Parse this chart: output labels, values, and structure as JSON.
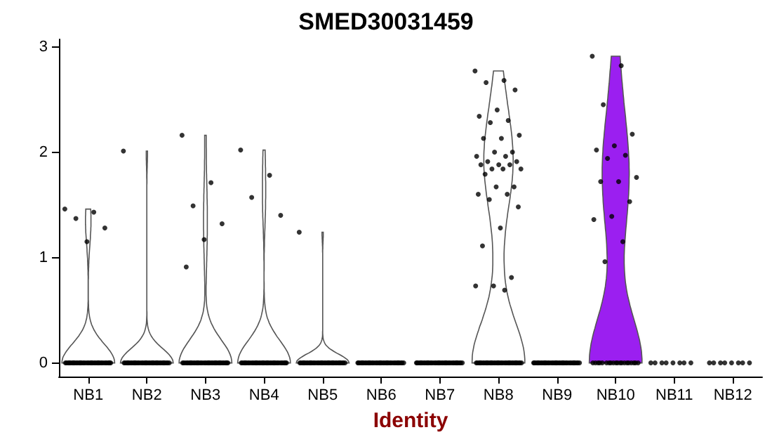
{
  "chart_data": {
    "type": "scatter",
    "title": "SMED30031459",
    "xlabel": "Identity",
    "categories": [
      "NB1",
      "NB2",
      "NB3",
      "NB4",
      "NB5",
      "NB6",
      "NB7",
      "NB8",
      "NB9",
      "NB10",
      "NB11",
      "NB12"
    ],
    "colors": [
      null,
      null,
      null,
      null,
      null,
      null,
      null,
      null,
      null,
      "#9b1ff0",
      null,
      null
    ],
    "ylim": [
      -0.13,
      3.07
    ],
    "yticks": [
      0,
      1,
      2,
      3
    ],
    "grid": false,
    "marker": "circle",
    "series": [
      {
        "color": "#000000",
        "x": [
          "NB1",
          "NB1",
          "NB1",
          "NB1",
          "NB1",
          "NB1",
          "NB1",
          "NB1",
          "NB1",
          "NB1",
          "NB1",
          "NB1",
          "NB1",
          "NB1",
          "NB1",
          "NB1",
          "NB1",
          "NB1",
          "NB1",
          "NB1",
          "NB1",
          "NB1",
          "NB1",
          "NB1",
          "NB1",
          "NB1",
          "NB1",
          "NB1",
          "NB1",
          "NB1",
          "NB1",
          "NB1",
          "NB1",
          "NB1",
          "NB1",
          "NB1",
          "NB1",
          "NB1",
          "NB1",
          "NB1",
          "NB1",
          "NB1",
          "NB1",
          "NB1",
          "NB1",
          "NB2",
          "NB2",
          "NB2",
          "NB2",
          "NB2",
          "NB2",
          "NB2",
          "NB2",
          "NB2",
          "NB2",
          "NB2",
          "NB2",
          "NB2",
          "NB2",
          "NB2",
          "NB2",
          "NB2",
          "NB2",
          "NB2",
          "NB2",
          "NB2",
          "NB2",
          "NB2",
          "NB2",
          "NB2",
          "NB2",
          "NB2",
          "NB2",
          "NB2",
          "NB2",
          "NB2",
          "NB2",
          "NB2",
          "NB2",
          "NB2",
          "NB2",
          "NB2",
          "NB2",
          "NB2",
          "NB2",
          "NB2",
          "NB3",
          "NB3",
          "NB3",
          "NB3",
          "NB3",
          "NB3",
          "NB3",
          "NB3",
          "NB3",
          "NB3",
          "NB3",
          "NB3",
          "NB3",
          "NB3",
          "NB3",
          "NB3",
          "NB3",
          "NB3",
          "NB3",
          "NB3",
          "NB3",
          "NB3",
          "NB3",
          "NB3",
          "NB3",
          "NB3",
          "NB3",
          "NB3",
          "NB3",
          "NB3",
          "NB3",
          "NB3",
          "NB3",
          "NB3",
          "NB3",
          "NB3",
          "NB3",
          "NB3",
          "NB3",
          "NB3",
          "NB3",
          "NB3",
          "NB3",
          "NB3",
          "NB3",
          "NB3",
          "NB4",
          "NB4",
          "NB4",
          "NB4",
          "NB4",
          "NB4",
          "NB4",
          "NB4",
          "NB4",
          "NB4",
          "NB4",
          "NB4",
          "NB4",
          "NB4",
          "NB4",
          "NB4",
          "NB4",
          "NB4",
          "NB4",
          "NB4",
          "NB4",
          "NB4",
          "NB4",
          "NB4",
          "NB4",
          "NB4",
          "NB4",
          "NB4",
          "NB4",
          "NB4",
          "NB4",
          "NB4",
          "NB4",
          "NB4",
          "NB4",
          "NB4",
          "NB4",
          "NB4",
          "NB4",
          "NB4",
          "NB4",
          "NB4",
          "NB4",
          "NB4",
          "NB5",
          "NB5",
          "NB5",
          "NB5",
          "NB5",
          "NB5",
          "NB5",
          "NB5",
          "NB5",
          "NB5",
          "NB5",
          "NB5",
          "NB5",
          "NB5",
          "NB5",
          "NB5",
          "NB5",
          "NB5",
          "NB5",
          "NB5",
          "NB5",
          "NB5",
          "NB5",
          "NB5",
          "NB5",
          "NB5",
          "NB5",
          "NB5",
          "NB5",
          "NB5",
          "NB5",
          "NB5",
          "NB5",
          "NB5",
          "NB5",
          "NB5",
          "NB5",
          "NB5",
          "NB5",
          "NB5",
          "NB5",
          "NB6",
          "NB6",
          "NB6",
          "NB6",
          "NB6",
          "NB6",
          "NB6",
          "NB6",
          "NB6",
          "NB6",
          "NB6",
          "NB6",
          "NB6",
          "NB6",
          "NB6",
          "NB6",
          "NB6",
          "NB6",
          "NB6",
          "NB6",
          "NB6",
          "NB6",
          "NB6",
          "NB6",
          "NB6",
          "NB6",
          "NB6",
          "NB6",
          "NB6",
          "NB6",
          "NB6",
          "NB6",
          "NB6",
          "NB6",
          "NB6",
          "NB6",
          "NB6",
          "NB6",
          "NB6",
          "NB6",
          "NB7",
          "NB7",
          "NB7",
          "NB7",
          "NB7",
          "NB7",
          "NB7",
          "NB7",
          "NB7",
          "NB7",
          "NB7",
          "NB7",
          "NB7",
          "NB7",
          "NB7",
          "NB7",
          "NB7",
          "NB7",
          "NB7",
          "NB7",
          "NB7",
          "NB7",
          "NB7",
          "NB7",
          "NB7",
          "NB7",
          "NB7",
          "NB7",
          "NB7",
          "NB7",
          "NB7",
          "NB7",
          "NB7",
          "NB7",
          "NB7",
          "NB7",
          "NB7",
          "NB7",
          "NB7",
          "NB7",
          "NB8",
          "NB8",
          "NB8",
          "NB8",
          "NB8",
          "NB8",
          "NB8",
          "NB8",
          "NB8",
          "NB8",
          "NB8",
          "NB8",
          "NB8",
          "NB8",
          "NB8",
          "NB8",
          "NB8",
          "NB8",
          "NB8",
          "NB8",
          "NB8",
          "NB8",
          "NB8",
          "NB8",
          "NB8",
          "NB8",
          "NB8",
          "NB8",
          "NB8",
          "NB8",
          "NB8",
          "NB8",
          "NB8",
          "NB8",
          "NB8",
          "NB8",
          "NB8",
          "NB8",
          "NB8",
          "NB8",
          "NB8",
          "NB8",
          "NB8",
          "NB8",
          "NB8",
          "NB8",
          "NB8",
          "NB8",
          "NB8",
          "NB8",
          "NB8",
          "NB8",
          "NB8",
          "NB8",
          "NB8",
          "NB8",
          "NB8",
          "NB8",
          "NB8",
          "NB8",
          "NB8",
          "NB8",
          "NB8",
          "NB8",
          "NB8",
          "NB8",
          "NB8",
          "NB8",
          "NB8",
          "NB8",
          "NB8",
          "NB8",
          "NB8",
          "NB8",
          "NB8",
          "NB8",
          "NB9",
          "NB9",
          "NB9",
          "NB9",
          "NB9",
          "NB9",
          "NB9",
          "NB9",
          "NB9",
          "NB9",
          "NB9",
          "NB9",
          "NB9",
          "NB9",
          "NB9",
          "NB9",
          "NB9",
          "NB9",
          "NB9",
          "NB9",
          "NB9",
          "NB9",
          "NB9",
          "NB9",
          "NB9",
          "NB9",
          "NB9",
          "NB9",
          "NB9",
          "NB9",
          "NB9",
          "NB9",
          "NB9",
          "NB9",
          "NB9",
          "NB9",
          "NB9",
          "NB9",
          "NB9",
          "NB9",
          "NB10",
          "NB10",
          "NB10",
          "NB10",
          "NB10",
          "NB10",
          "NB10",
          "NB10",
          "NB10",
          "NB10",
          "NB10",
          "NB10",
          "NB10",
          "NB10",
          "NB10",
          "NB10",
          "NB10",
          "NB10",
          "NB10",
          "NB10",
          "NB10",
          "NB10",
          "NB10",
          "NB10",
          "NB10",
          "NB10",
          "NB10",
          "NB10",
          "NB10",
          "NB10",
          "NB10",
          "NB10",
          "NB10",
          "NB10",
          "NB10",
          "NB10",
          "NB11",
          "NB11",
          "NB11",
          "NB11",
          "NB11",
          "NB11",
          "NB11",
          "NB11",
          "NB12",
          "NB12",
          "NB12",
          "NB12",
          "NB12",
          "NB12",
          "NB12",
          "NB12"
        ],
        "values": [
          1.46,
          1.43,
          1.37,
          1.28,
          1.15,
          0,
          0,
          0,
          0,
          0,
          0,
          0,
          0,
          0,
          0,
          0,
          0,
          0,
          0,
          0,
          0,
          0,
          0,
          0,
          0,
          0,
          0,
          0,
          0,
          0,
          0,
          0,
          0,
          0,
          0,
          0,
          0,
          0,
          0,
          0,
          0,
          0,
          0,
          0,
          0,
          2.01,
          0,
          0,
          0,
          0,
          0,
          0,
          0,
          0,
          0,
          0,
          0,
          0,
          0,
          0,
          0,
          0,
          0,
          0,
          0,
          0,
          0,
          0,
          0,
          0,
          0,
          0,
          0,
          0,
          0,
          0,
          0,
          0,
          0,
          0,
          0,
          0,
          0,
          0,
          0,
          0,
          2.16,
          1.71,
          1.49,
          1.32,
          1.17,
          0.91,
          0,
          0,
          0,
          0,
          0,
          0,
          0,
          0,
          0,
          0,
          0,
          0,
          0,
          0,
          0,
          0,
          0,
          0,
          0,
          0,
          0,
          0,
          0,
          0,
          0,
          0,
          0,
          0,
          0,
          0,
          0,
          0,
          0,
          0,
          0,
          0,
          0,
          0,
          0,
          0,
          2.02,
          1.78,
          1.57,
          1.4,
          0,
          0,
          0,
          0,
          0,
          0,
          0,
          0,
          0,
          0,
          0,
          0,
          0,
          0,
          0,
          0,
          0,
          0,
          0,
          0,
          0,
          0,
          0,
          0,
          0,
          0,
          0,
          0,
          0,
          0,
          0,
          0,
          0,
          0,
          0,
          0,
          0,
          0,
          0,
          0,
          1.24,
          0,
          0,
          0,
          0,
          0,
          0,
          0,
          0,
          0,
          0,
          0,
          0,
          0,
          0,
          0,
          0,
          0,
          0,
          0,
          0,
          0,
          0,
          0,
          0,
          0,
          0,
          0,
          0,
          0,
          0,
          0,
          0,
          0,
          0,
          0,
          0,
          0,
          0,
          0,
          0,
          0,
          0,
          0,
          0,
          0,
          0,
          0,
          0,
          0,
          0,
          0,
          0,
          0,
          0,
          0,
          0,
          0,
          0,
          0,
          0,
          0,
          0,
          0,
          0,
          0,
          0,
          0,
          0,
          0,
          0,
          0,
          0,
          0,
          0,
          0,
          0,
          0,
          0,
          0,
          0,
          0,
          0,
          0,
          0,
          0,
          0,
          0,
          0,
          0,
          0,
          0,
          0,
          0,
          0,
          0,
          0,
          0,
          0,
          0,
          0,
          0,
          0,
          0,
          0,
          0,
          0,
          0,
          0,
          0,
          0,
          0,
          0,
          0,
          0,
          0,
          0,
          0,
          0,
          0,
          0,
          2.77,
          2.68,
          2.66,
          2.59,
          2.4,
          2.34,
          2.3,
          2.28,
          2.16,
          2.13,
          2.13,
          2.0,
          2.0,
          1.96,
          1.96,
          1.91,
          1.91,
          1.88,
          1.88,
          1.88,
          1.84,
          1.84,
          1.84,
          1.79,
          1.67,
          1.67,
          1.6,
          1.6,
          1.55,
          1.48,
          1.28,
          1.11,
          0.81,
          0.73,
          0.73,
          0.69,
          0,
          0,
          0,
          0,
          0,
          0,
          0,
          0,
          0,
          0,
          0,
          0,
          0,
          0,
          0,
          0,
          0,
          0,
          0,
          0,
          0,
          0,
          0,
          0,
          0,
          0,
          0,
          0,
          0,
          0,
          0,
          0,
          0,
          0,
          0,
          0,
          0,
          0,
          0,
          0,
          0,
          0,
          0,
          0,
          0,
          0,
          0,
          0,
          0,
          0,
          0,
          0,
          0,
          0,
          0,
          0,
          0,
          0,
          0,
          0,
          0,
          0,
          0,
          0,
          0,
          0,
          0,
          0,
          0,
          0,
          0,
          0,
          0,
          0,
          0,
          0,
          0,
          0,
          0,
          0,
          2.91,
          2.82,
          2.45,
          2.17,
          2.06,
          2.02,
          1.97,
          1.94,
          1.76,
          1.72,
          1.72,
          1.53,
          1.39,
          1.36,
          1.15,
          0.96,
          0,
          0,
          0,
          0,
          0,
          0,
          0,
          0,
          0,
          0,
          0,
          0,
          0,
          0,
          0,
          0,
          0,
          0,
          0,
          0,
          0,
          0,
          0,
          0,
          0,
          0,
          0,
          0,
          0,
          0,
          0,
          0,
          0,
          0,
          0,
          0
        ]
      }
    ]
  }
}
